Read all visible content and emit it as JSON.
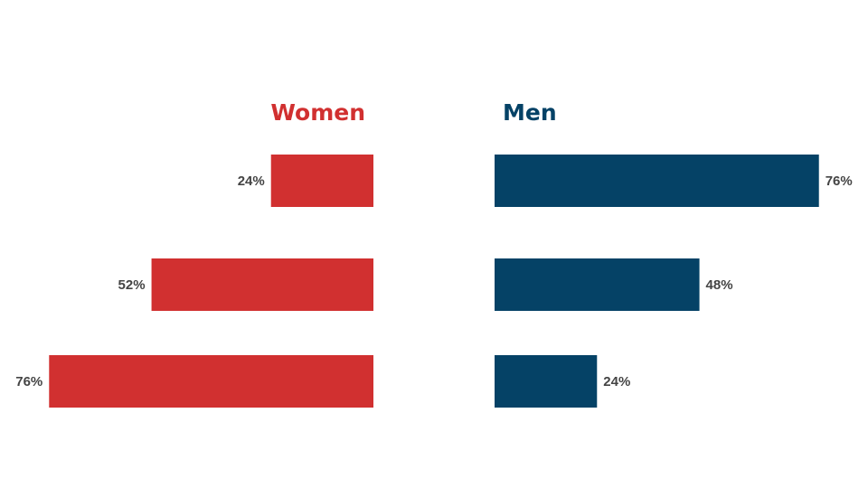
{
  "chart_data": {
    "type": "bar",
    "orientation": "horizontal-butterfly",
    "value_format": "percent",
    "xlim": [
      0,
      100
    ],
    "grid": false,
    "legend": "none",
    "groups": [
      {
        "name": "Women",
        "color": "#d13030",
        "values": [
          24,
          52,
          76
        ],
        "labels": [
          "24%",
          "52%",
          "76%"
        ]
      },
      {
        "name": "Men",
        "color": "#054266",
        "values": [
          76,
          48,
          24
        ],
        "labels": [
          "76%",
          "48%",
          "24%"
        ]
      }
    ]
  }
}
